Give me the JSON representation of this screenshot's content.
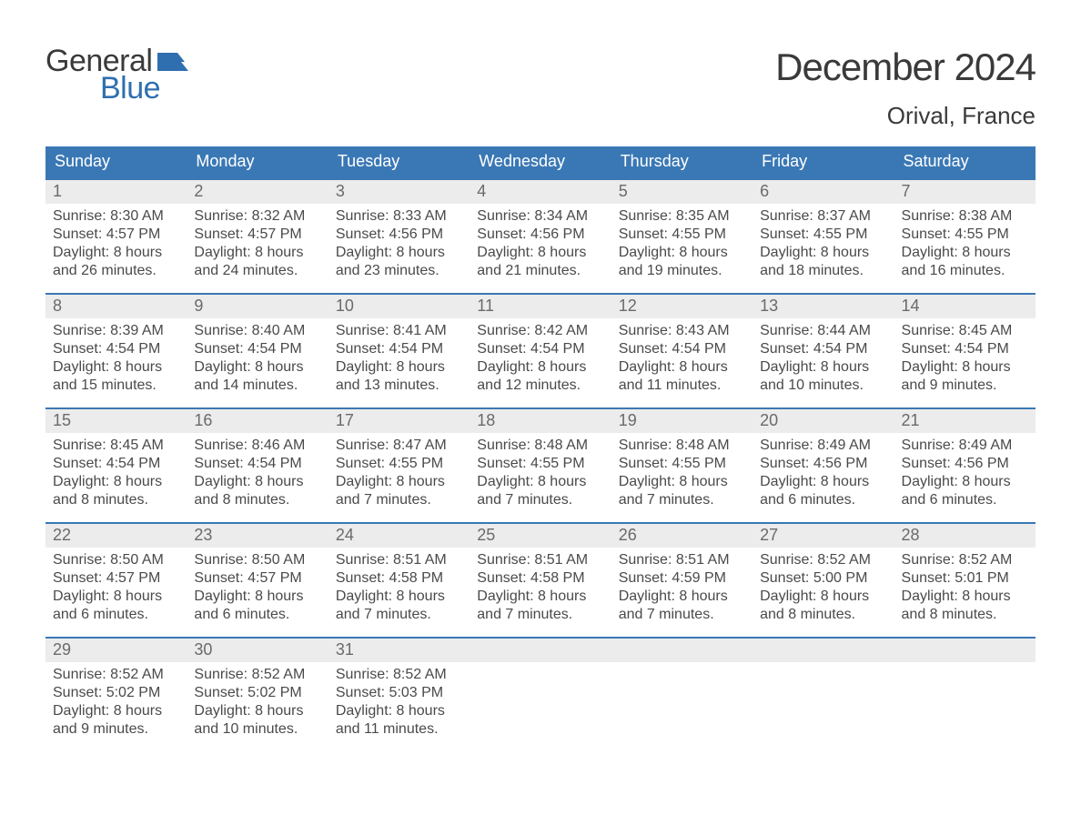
{
  "brand": {
    "word1": "General",
    "word2": "Blue",
    "text_color": "#3a3a3a",
    "accent_color": "#2f6fb0",
    "flag_color": "#2f6fb0"
  },
  "title": {
    "month": "December 2024",
    "location": "Orival, France",
    "title_fontsize": 42,
    "location_fontsize": 26
  },
  "calendar": {
    "header_bg": "#3a78b5",
    "header_text_color": "#ffffff",
    "week_divider_color": "#3a78b5",
    "daynum_bg": "#ececec",
    "daynum_color": "#6a6a6a",
    "body_text_color": "#4a4a4a",
    "columns": [
      "Sunday",
      "Monday",
      "Tuesday",
      "Wednesday",
      "Thursday",
      "Friday",
      "Saturday"
    ],
    "weeks": [
      [
        {
          "n": "1",
          "sunrise": "8:30 AM",
          "sunset": "4:57 PM",
          "daylight": "8 hours and 26 minutes."
        },
        {
          "n": "2",
          "sunrise": "8:32 AM",
          "sunset": "4:57 PM",
          "daylight": "8 hours and 24 minutes."
        },
        {
          "n": "3",
          "sunrise": "8:33 AM",
          "sunset": "4:56 PM",
          "daylight": "8 hours and 23 minutes."
        },
        {
          "n": "4",
          "sunrise": "8:34 AM",
          "sunset": "4:56 PM",
          "daylight": "8 hours and 21 minutes."
        },
        {
          "n": "5",
          "sunrise": "8:35 AM",
          "sunset": "4:55 PM",
          "daylight": "8 hours and 19 minutes."
        },
        {
          "n": "6",
          "sunrise": "8:37 AM",
          "sunset": "4:55 PM",
          "daylight": "8 hours and 18 minutes."
        },
        {
          "n": "7",
          "sunrise": "8:38 AM",
          "sunset": "4:55 PM",
          "daylight": "8 hours and 16 minutes."
        }
      ],
      [
        {
          "n": "8",
          "sunrise": "8:39 AM",
          "sunset": "4:54 PM",
          "daylight": "8 hours and 15 minutes."
        },
        {
          "n": "9",
          "sunrise": "8:40 AM",
          "sunset": "4:54 PM",
          "daylight": "8 hours and 14 minutes."
        },
        {
          "n": "10",
          "sunrise": "8:41 AM",
          "sunset": "4:54 PM",
          "daylight": "8 hours and 13 minutes."
        },
        {
          "n": "11",
          "sunrise": "8:42 AM",
          "sunset": "4:54 PM",
          "daylight": "8 hours and 12 minutes."
        },
        {
          "n": "12",
          "sunrise": "8:43 AM",
          "sunset": "4:54 PM",
          "daylight": "8 hours and 11 minutes."
        },
        {
          "n": "13",
          "sunrise": "8:44 AM",
          "sunset": "4:54 PM",
          "daylight": "8 hours and 10 minutes."
        },
        {
          "n": "14",
          "sunrise": "8:45 AM",
          "sunset": "4:54 PM",
          "daylight": "8 hours and 9 minutes."
        }
      ],
      [
        {
          "n": "15",
          "sunrise": "8:45 AM",
          "sunset": "4:54 PM",
          "daylight": "8 hours and 8 minutes."
        },
        {
          "n": "16",
          "sunrise": "8:46 AM",
          "sunset": "4:54 PM",
          "daylight": "8 hours and 8 minutes."
        },
        {
          "n": "17",
          "sunrise": "8:47 AM",
          "sunset": "4:55 PM",
          "daylight": "8 hours and 7 minutes."
        },
        {
          "n": "18",
          "sunrise": "8:48 AM",
          "sunset": "4:55 PM",
          "daylight": "8 hours and 7 minutes."
        },
        {
          "n": "19",
          "sunrise": "8:48 AM",
          "sunset": "4:55 PM",
          "daylight": "8 hours and 7 minutes."
        },
        {
          "n": "20",
          "sunrise": "8:49 AM",
          "sunset": "4:56 PM",
          "daylight": "8 hours and 6 minutes."
        },
        {
          "n": "21",
          "sunrise": "8:49 AM",
          "sunset": "4:56 PM",
          "daylight": "8 hours and 6 minutes."
        }
      ],
      [
        {
          "n": "22",
          "sunrise": "8:50 AM",
          "sunset": "4:57 PM",
          "daylight": "8 hours and 6 minutes."
        },
        {
          "n": "23",
          "sunrise": "8:50 AM",
          "sunset": "4:57 PM",
          "daylight": "8 hours and 6 minutes."
        },
        {
          "n": "24",
          "sunrise": "8:51 AM",
          "sunset": "4:58 PM",
          "daylight": "8 hours and 7 minutes."
        },
        {
          "n": "25",
          "sunrise": "8:51 AM",
          "sunset": "4:58 PM",
          "daylight": "8 hours and 7 minutes."
        },
        {
          "n": "26",
          "sunrise": "8:51 AM",
          "sunset": "4:59 PM",
          "daylight": "8 hours and 7 minutes."
        },
        {
          "n": "27",
          "sunrise": "8:52 AM",
          "sunset": "5:00 PM",
          "daylight": "8 hours and 8 minutes."
        },
        {
          "n": "28",
          "sunrise": "8:52 AM",
          "sunset": "5:01 PM",
          "daylight": "8 hours and 8 minutes."
        }
      ],
      [
        {
          "n": "29",
          "sunrise": "8:52 AM",
          "sunset": "5:02 PM",
          "daylight": "8 hours and 9 minutes."
        },
        {
          "n": "30",
          "sunrise": "8:52 AM",
          "sunset": "5:02 PM",
          "daylight": "8 hours and 10 minutes."
        },
        {
          "n": "31",
          "sunrise": "8:52 AM",
          "sunset": "5:03 PM",
          "daylight": "8 hours and 11 minutes."
        },
        {
          "empty": true
        },
        {
          "empty": true
        },
        {
          "empty": true
        },
        {
          "empty": true
        }
      ]
    ],
    "labels": {
      "sunrise": "Sunrise:",
      "sunset": "Sunset:",
      "daylight": "Daylight:"
    }
  }
}
